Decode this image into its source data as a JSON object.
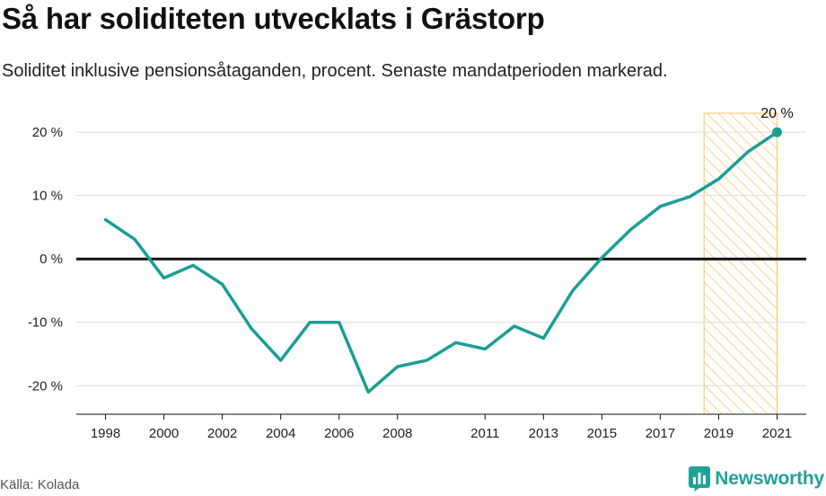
{
  "title": "Så har soliditeten utvecklats i Grästorp",
  "subtitle": "Soliditet inklusive pensionsåtaganden, procent. Senaste mandatperioden markerad.",
  "source": "Källa: Kolada",
  "brand": {
    "name": "Newsworthy",
    "icon": "newsworthy-logo-icon",
    "color": "#20a298"
  },
  "chart_data": {
    "type": "line",
    "x": [
      1998,
      1999,
      2000,
      2001,
      2002,
      2003,
      2004,
      2005,
      2006,
      2007,
      2008,
      2009,
      2010,
      2011,
      2012,
      2013,
      2014,
      2015,
      2016,
      2017,
      2018,
      2019,
      2020,
      2021
    ],
    "values": [
      6.2,
      3.1,
      -3.0,
      -1.0,
      -4.0,
      -11.0,
      -16.0,
      -10.0,
      -10.0,
      -21.0,
      -17.0,
      -16.0,
      -13.2,
      -14.2,
      -10.6,
      -12.5,
      -5.0,
      0.2,
      4.7,
      8.3,
      9.8,
      12.6,
      16.9,
      20.0
    ],
    "xticks": [
      1998,
      2000,
      2002,
      2004,
      2006,
      2008,
      2011,
      2013,
      2015,
      2017,
      2019,
      2021
    ],
    "yticks": [
      20,
      10,
      0,
      -10,
      -20
    ],
    "ytick_suffix": " %",
    "xlim": [
      1997,
      2022
    ],
    "ylim": [
      -24.5,
      23
    ],
    "highlight": {
      "from": 2018.5,
      "to": 2021,
      "color": "#f6c35b"
    },
    "end_label": "20 %",
    "line_color": "#1a9e95",
    "zero_line": true,
    "grid": true
  }
}
